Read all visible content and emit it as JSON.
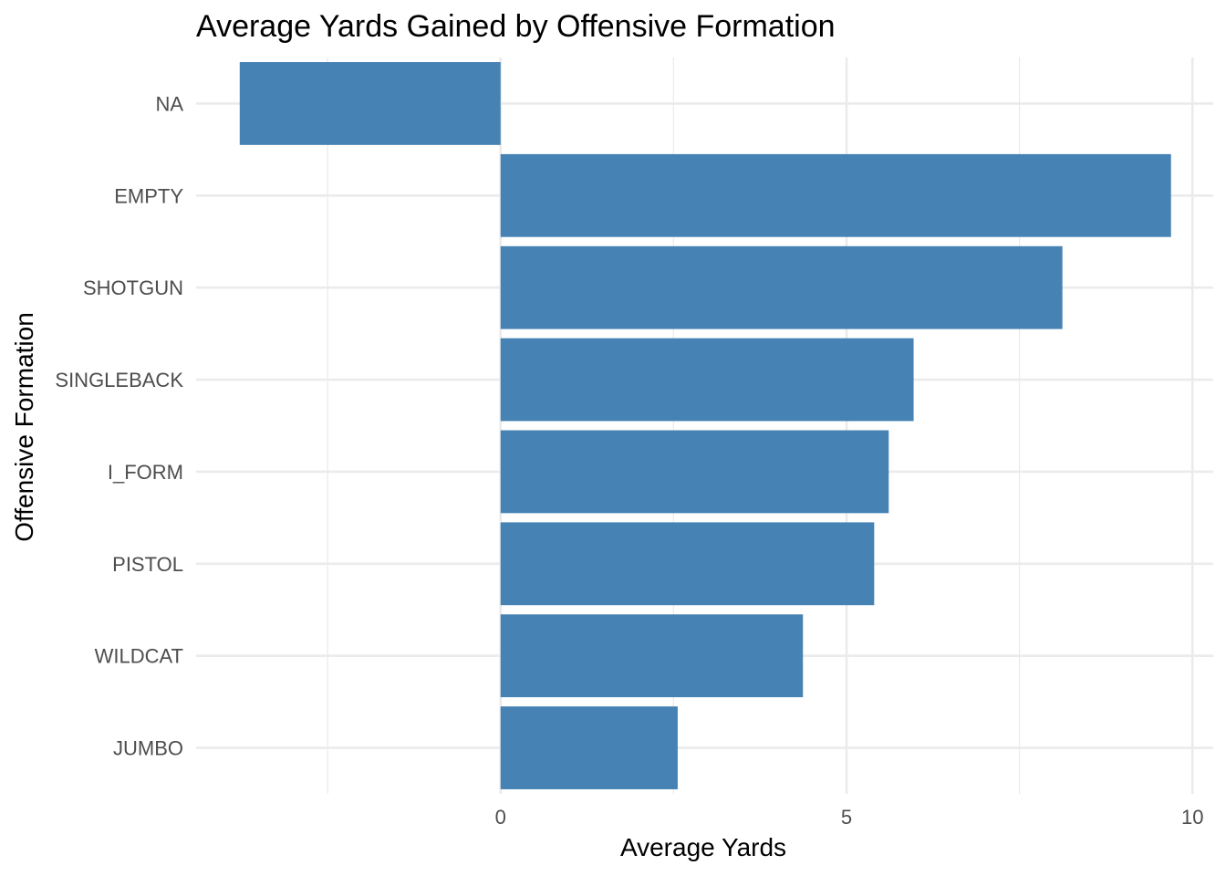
{
  "chart_data": {
    "type": "bar",
    "orientation": "horizontal",
    "title": "Average Yards Gained by Offensive Formation",
    "xlabel": "Average Yards",
    "ylabel": "Offensive Formation",
    "categories": [
      "NA",
      "EMPTY",
      "SHOTGUN",
      "SINGLEBACK",
      "I_FORM",
      "PISTOL",
      "WILDCAT",
      "JUMBO"
    ],
    "values": [
      -3.77,
      9.69,
      8.12,
      5.97,
      5.61,
      5.4,
      4.37,
      2.56
    ],
    "xlim": [
      -4.4,
      10.3
    ],
    "xticks": [
      0,
      5,
      10
    ],
    "xtick_labels": [
      "0",
      "5",
      "10"
    ],
    "grid": true,
    "legend": "none",
    "bar_color": "#4682B4",
    "grid_color": "#EBEBEB"
  }
}
